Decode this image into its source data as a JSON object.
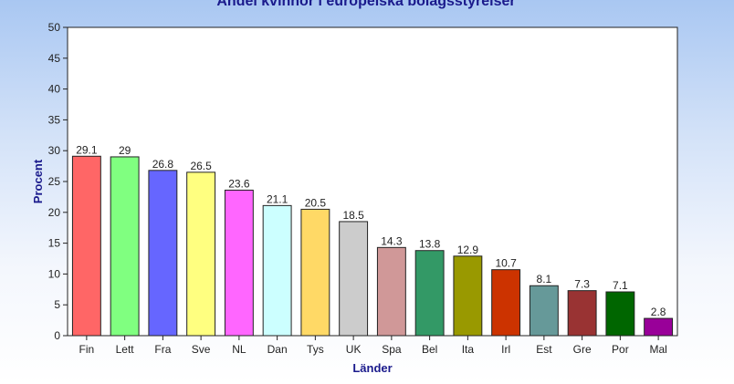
{
  "chart_data": {
    "type": "bar",
    "title": "Andel kvinnor i europeiska bolagsstyrelser",
    "xlabel": "Länder",
    "ylabel": "Procent",
    "ylim": [
      0,
      50
    ],
    "yticks": [
      0,
      5,
      10,
      15,
      20,
      25,
      30,
      35,
      40,
      45,
      50
    ],
    "grid": false,
    "categories": [
      "Fin",
      "Lett",
      "Fra",
      "Sve",
      "NL",
      "Dan",
      "Tys",
      "UK",
      "Spa",
      "Bel",
      "Ita",
      "Irl",
      "Est",
      "Gre",
      "Por",
      "Mal"
    ],
    "values": [
      29.1,
      29,
      26.8,
      26.5,
      23.6,
      21.1,
      20.5,
      18.5,
      14.3,
      13.8,
      12.9,
      10.7,
      8.1,
      7.3,
      7.1,
      2.8
    ],
    "data_labels": [
      "29.1",
      "29",
      "26.8",
      "26.5",
      "23.6",
      "21.1",
      "20.5",
      "18.5",
      "14.3",
      "13.8",
      "12.9",
      "10.7",
      "8.1",
      "7.3",
      "7.1",
      "2.8"
    ],
    "colors": [
      "#ff6666",
      "#80ff80",
      "#6666ff",
      "#ffff80",
      "#ff66ff",
      "#ccffff",
      "#ffd966",
      "#cccccc",
      "#d09898",
      "#339966",
      "#999900",
      "#cc3300",
      "#669999",
      "#993333",
      "#006600",
      "#990099"
    ]
  }
}
